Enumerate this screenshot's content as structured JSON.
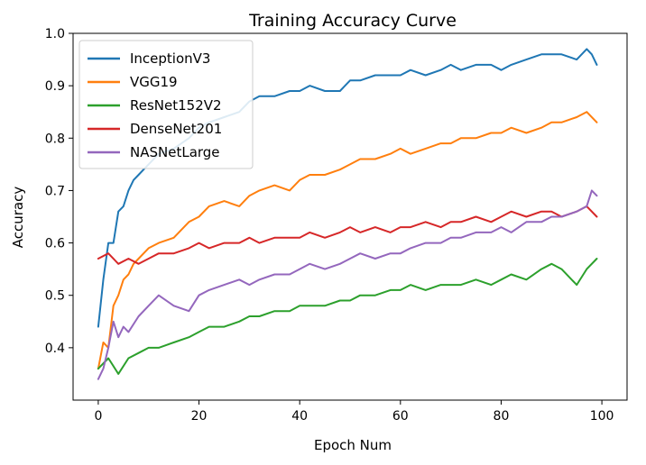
{
  "chart_data": {
    "type": "line",
    "title": "Training  Accuracy Curve",
    "xlabel": "Epoch Num",
    "ylabel": "Accuracy",
    "xlim": [
      -5,
      105
    ],
    "ylim": [
      0.3,
      1.0
    ],
    "xticks": [
      0,
      20,
      40,
      60,
      80,
      100
    ],
    "yticks": [
      0.4,
      0.5,
      0.6,
      0.7,
      0.8,
      0.9,
      1.0
    ],
    "grid": false,
    "legend_position": "top-left",
    "series": [
      {
        "name": "InceptionV3",
        "color": "#1f77b4",
        "x": [
          0,
          1,
          2,
          3,
          4,
          5,
          6,
          7,
          8,
          9,
          10,
          12,
          15,
          18,
          20,
          22,
          25,
          28,
          30,
          32,
          35,
          38,
          40,
          42,
          45,
          48,
          50,
          52,
          55,
          58,
          60,
          62,
          65,
          68,
          70,
          72,
          75,
          78,
          80,
          82,
          85,
          88,
          90,
          92,
          95,
          97,
          98,
          99
        ],
        "values": [
          0.44,
          0.53,
          0.6,
          0.6,
          0.66,
          0.67,
          0.7,
          0.72,
          0.73,
          0.74,
          0.75,
          0.77,
          0.78,
          0.8,
          0.82,
          0.83,
          0.84,
          0.85,
          0.87,
          0.88,
          0.88,
          0.89,
          0.89,
          0.9,
          0.89,
          0.89,
          0.91,
          0.91,
          0.92,
          0.92,
          0.92,
          0.93,
          0.92,
          0.93,
          0.94,
          0.93,
          0.94,
          0.94,
          0.93,
          0.94,
          0.95,
          0.96,
          0.96,
          0.96,
          0.95,
          0.97,
          0.96,
          0.94
        ]
      },
      {
        "name": "VGG19",
        "color": "#ff7f0e",
        "x": [
          0,
          1,
          2,
          3,
          4,
          5,
          6,
          7,
          8,
          10,
          12,
          15,
          18,
          20,
          22,
          25,
          28,
          30,
          32,
          35,
          38,
          40,
          42,
          45,
          48,
          50,
          52,
          55,
          58,
          60,
          62,
          65,
          68,
          70,
          72,
          75,
          78,
          80,
          82,
          85,
          88,
          90,
          92,
          95,
          97,
          99
        ],
        "values": [
          0.36,
          0.41,
          0.4,
          0.48,
          0.5,
          0.53,
          0.54,
          0.56,
          0.57,
          0.59,
          0.6,
          0.61,
          0.64,
          0.65,
          0.67,
          0.68,
          0.67,
          0.69,
          0.7,
          0.71,
          0.7,
          0.72,
          0.73,
          0.73,
          0.74,
          0.75,
          0.76,
          0.76,
          0.77,
          0.78,
          0.77,
          0.78,
          0.79,
          0.79,
          0.8,
          0.8,
          0.81,
          0.81,
          0.82,
          0.81,
          0.82,
          0.83,
          0.83,
          0.84,
          0.85,
          0.83
        ]
      },
      {
        "name": "ResNet152V2",
        "color": "#2ca02c",
        "x": [
          0,
          2,
          4,
          6,
          8,
          10,
          12,
          15,
          18,
          20,
          22,
          25,
          28,
          30,
          32,
          35,
          38,
          40,
          42,
          45,
          48,
          50,
          52,
          55,
          58,
          60,
          62,
          65,
          68,
          70,
          72,
          75,
          78,
          80,
          82,
          85,
          88,
          90,
          92,
          95,
          97,
          99
        ],
        "values": [
          0.36,
          0.38,
          0.35,
          0.38,
          0.39,
          0.4,
          0.4,
          0.41,
          0.42,
          0.43,
          0.44,
          0.44,
          0.45,
          0.46,
          0.46,
          0.47,
          0.47,
          0.48,
          0.48,
          0.48,
          0.49,
          0.49,
          0.5,
          0.5,
          0.51,
          0.51,
          0.52,
          0.51,
          0.52,
          0.52,
          0.52,
          0.53,
          0.52,
          0.53,
          0.54,
          0.53,
          0.55,
          0.56,
          0.55,
          0.52,
          0.55,
          0.57
        ]
      },
      {
        "name": "DenseNet201",
        "color": "#d62728",
        "x": [
          0,
          2,
          4,
          6,
          8,
          10,
          12,
          15,
          18,
          20,
          22,
          25,
          28,
          30,
          32,
          35,
          38,
          40,
          42,
          45,
          48,
          50,
          52,
          55,
          58,
          60,
          62,
          65,
          68,
          70,
          72,
          75,
          78,
          80,
          82,
          85,
          88,
          90,
          92,
          95,
          97,
          99
        ],
        "values": [
          0.57,
          0.58,
          0.56,
          0.57,
          0.56,
          0.57,
          0.58,
          0.58,
          0.59,
          0.6,
          0.59,
          0.6,
          0.6,
          0.61,
          0.6,
          0.61,
          0.61,
          0.61,
          0.62,
          0.61,
          0.62,
          0.63,
          0.62,
          0.63,
          0.62,
          0.63,
          0.63,
          0.64,
          0.63,
          0.64,
          0.64,
          0.65,
          0.64,
          0.65,
          0.66,
          0.65,
          0.66,
          0.66,
          0.65,
          0.66,
          0.67,
          0.65
        ]
      },
      {
        "name": "NASNetLarge",
        "color": "#9467bd",
        "x": [
          0,
          1,
          2,
          3,
          4,
          5,
          6,
          8,
          10,
          12,
          15,
          18,
          20,
          22,
          25,
          28,
          30,
          32,
          35,
          38,
          40,
          42,
          45,
          48,
          50,
          52,
          55,
          58,
          60,
          62,
          65,
          68,
          70,
          72,
          75,
          78,
          80,
          82,
          85,
          88,
          90,
          92,
          95,
          97,
          98,
          99
        ],
        "values": [
          0.34,
          0.36,
          0.4,
          0.45,
          0.42,
          0.44,
          0.43,
          0.46,
          0.48,
          0.5,
          0.48,
          0.47,
          0.5,
          0.51,
          0.52,
          0.53,
          0.52,
          0.53,
          0.54,
          0.54,
          0.55,
          0.56,
          0.55,
          0.56,
          0.57,
          0.58,
          0.57,
          0.58,
          0.58,
          0.59,
          0.6,
          0.6,
          0.61,
          0.61,
          0.62,
          0.62,
          0.63,
          0.62,
          0.64,
          0.64,
          0.65,
          0.65,
          0.66,
          0.67,
          0.7,
          0.69
        ]
      }
    ]
  }
}
